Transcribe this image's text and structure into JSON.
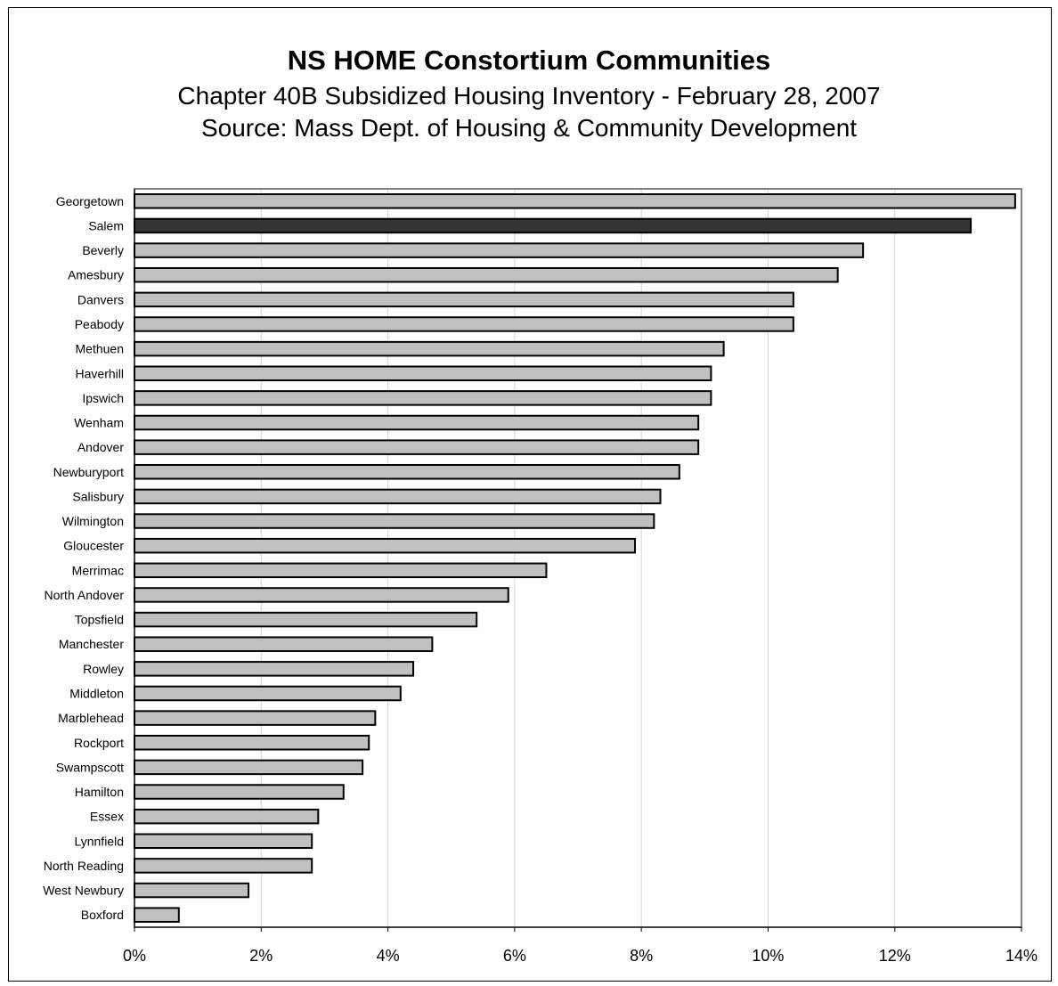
{
  "chart_data": {
    "type": "bar",
    "orientation": "horizontal",
    "title": "NS HOME Constortium Communities",
    "subtitle_lines": [
      "Chapter 40B Subsidized Housing Inventory - February 28, 2007",
      "Source: Mass Dept. of Housing & Community Development"
    ],
    "xlabel": "",
    "ylabel": "",
    "xlim": [
      0,
      14
    ],
    "x_ticks": [
      "0%",
      "2%",
      "4%",
      "6%",
      "8%",
      "10%",
      "12%",
      "14%"
    ],
    "x_tick_values": [
      0,
      2,
      4,
      6,
      8,
      10,
      12,
      14
    ],
    "grid": "vertical",
    "legend": "none",
    "categories": [
      "Georgetown",
      "Salem",
      "Beverly",
      "Amesbury",
      "Danvers",
      "Peabody",
      "Methuen",
      "Haverhill",
      "Ipswich",
      "Wenham",
      "Andover",
      "Newburyport",
      "Salisbury",
      "Wilmington",
      "Gloucester",
      "Merrimac",
      "North Andover",
      "Topsfield",
      "Manchester",
      "Rowley",
      "Middleton",
      "Marblehead",
      "Rockport",
      "Swampscott",
      "Hamilton",
      "Essex",
      "Lynnfield",
      "North Reading",
      "West Newbury",
      "Boxford"
    ],
    "values": [
      13.9,
      13.2,
      11.5,
      11.1,
      10.4,
      10.4,
      9.3,
      9.1,
      9.1,
      8.9,
      8.9,
      8.6,
      8.3,
      8.2,
      7.9,
      6.5,
      5.9,
      5.4,
      4.7,
      4.4,
      4.2,
      3.8,
      3.7,
      3.6,
      3.3,
      2.9,
      2.8,
      2.8,
      1.8,
      0.7
    ],
    "highlight": "Salem",
    "colors": {
      "bar": "#c0c0c0",
      "highlight": "#333333",
      "stroke": "#000000",
      "grid": "#d4d4d4",
      "axis": "#808080"
    }
  }
}
